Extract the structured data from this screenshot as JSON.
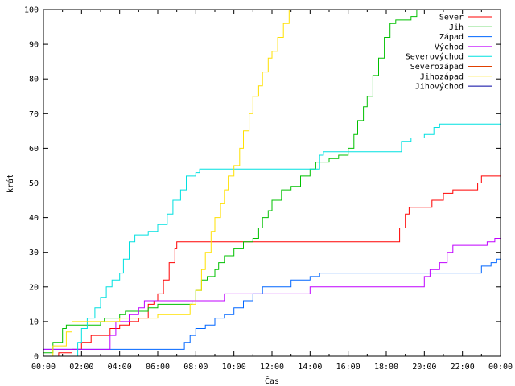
{
  "chart_data": {
    "type": "line",
    "xlabel": "Čas",
    "ylabel": "krát",
    "xlim": [
      0,
      24
    ],
    "ylim": [
      0,
      100
    ],
    "x_ticks": [
      {
        "value": 0,
        "label": "00:00"
      },
      {
        "value": 2,
        "label": "02:00"
      },
      {
        "value": 4,
        "label": "04:00"
      },
      {
        "value": 6,
        "label": "06:00"
      },
      {
        "value": 8,
        "label": "08:00"
      },
      {
        "value": 10,
        "label": "10:00"
      },
      {
        "value": 12,
        "label": "12:00"
      },
      {
        "value": 14,
        "label": "14:00"
      },
      {
        "value": 16,
        "label": "16:00"
      },
      {
        "value": 18,
        "label": "18:00"
      },
      {
        "value": 20,
        "label": "20:00"
      },
      {
        "value": 22,
        "label": "22:00"
      },
      {
        "value": 24,
        "label": "00:00"
      }
    ],
    "y_ticks": [
      0,
      10,
      20,
      30,
      40,
      50,
      60,
      70,
      80,
      90,
      100
    ],
    "grid": false,
    "legend_position": "top-right",
    "series": [
      {
        "name": "Sever",
        "color": "#ff0000",
        "points": [
          [
            0,
            0
          ],
          [
            0.8,
            1
          ],
          [
            1.5,
            2
          ],
          [
            2,
            4
          ],
          [
            2.5,
            6
          ],
          [
            3.2,
            6
          ],
          [
            3.5,
            8
          ],
          [
            4,
            9
          ],
          [
            4.5,
            10
          ],
          [
            5,
            11
          ],
          [
            5.5,
            15
          ],
          [
            5.8,
            16
          ],
          [
            6,
            18
          ],
          [
            6.3,
            22
          ],
          [
            6.6,
            27
          ],
          [
            6.9,
            31
          ],
          [
            7,
            33
          ],
          [
            18.5,
            33
          ],
          [
            18.7,
            37
          ],
          [
            19,
            41
          ],
          [
            19.2,
            43
          ],
          [
            20,
            43
          ],
          [
            20.4,
            45
          ],
          [
            21,
            47
          ],
          [
            21.5,
            48
          ],
          [
            22.8,
            50
          ],
          [
            23,
            52
          ],
          [
            24,
            52
          ]
        ]
      },
      {
        "name": "Jih",
        "color": "#00c000",
        "points": [
          [
            0,
            1
          ],
          [
            0.5,
            4
          ],
          [
            1,
            8
          ],
          [
            1.2,
            9
          ],
          [
            2,
            9
          ],
          [
            3,
            10
          ],
          [
            3.2,
            11
          ],
          [
            4,
            12
          ],
          [
            4.3,
            13
          ],
          [
            5.5,
            14
          ],
          [
            6,
            15
          ],
          [
            7.5,
            15
          ],
          [
            7.8,
            16
          ],
          [
            8,
            19
          ],
          [
            8.3,
            22
          ],
          [
            8.6,
            23
          ],
          [
            9,
            25
          ],
          [
            9.2,
            27
          ],
          [
            9.5,
            29
          ],
          [
            10,
            31
          ],
          [
            10.5,
            33
          ],
          [
            11,
            34
          ],
          [
            11.3,
            37
          ],
          [
            11.5,
            40
          ],
          [
            11.8,
            42
          ],
          [
            12,
            45
          ],
          [
            12.5,
            48
          ],
          [
            13,
            49
          ],
          [
            13.5,
            52
          ],
          [
            14,
            54
          ],
          [
            14.3,
            56
          ],
          [
            15,
            57
          ],
          [
            15.5,
            58
          ],
          [
            16,
            60
          ],
          [
            16.3,
            64
          ],
          [
            16.5,
            68
          ],
          [
            16.8,
            72
          ],
          [
            17,
            75
          ],
          [
            17.3,
            81
          ],
          [
            17.6,
            86
          ],
          [
            17.9,
            92
          ],
          [
            18.2,
            96
          ],
          [
            18.5,
            97
          ],
          [
            19.3,
            98
          ],
          [
            19.6,
            100
          ]
        ]
      },
      {
        "name": "Západ",
        "color": "#0066ff",
        "points": [
          [
            0,
            2
          ],
          [
            7.2,
            2
          ],
          [
            7.4,
            4
          ],
          [
            7.7,
            6
          ],
          [
            8,
            8
          ],
          [
            8.5,
            9
          ],
          [
            9,
            11
          ],
          [
            9.5,
            12
          ],
          [
            10,
            14
          ],
          [
            10.5,
            16
          ],
          [
            11,
            18
          ],
          [
            11.5,
            20
          ],
          [
            12.5,
            20
          ],
          [
            13,
            22
          ],
          [
            14,
            23
          ],
          [
            14.5,
            24
          ],
          [
            22.8,
            24
          ],
          [
            23,
            26
          ],
          [
            23.5,
            27
          ],
          [
            23.8,
            28
          ],
          [
            24,
            29
          ]
        ]
      },
      {
        "name": "Východ",
        "color": "#c000ff",
        "points": [
          [
            0,
            2
          ],
          [
            3.3,
            2
          ],
          [
            3.5,
            6
          ],
          [
            3.8,
            10
          ],
          [
            4.5,
            12
          ],
          [
            5,
            14
          ],
          [
            5.3,
            16
          ],
          [
            8.5,
            16
          ],
          [
            9.5,
            18
          ],
          [
            13.5,
            18
          ],
          [
            14,
            20
          ],
          [
            19.5,
            20
          ],
          [
            20,
            23
          ],
          [
            20.3,
            25
          ],
          [
            20.8,
            27
          ],
          [
            21.2,
            30
          ],
          [
            21.5,
            32
          ],
          [
            23,
            32
          ],
          [
            23.3,
            33
          ],
          [
            23.7,
            34
          ],
          [
            24,
            36
          ]
        ]
      },
      {
        "name": "Severovýchod",
        "color": "#00e0e0",
        "points": [
          [
            0,
            0
          ],
          [
            1.6,
            0
          ],
          [
            1.8,
            4
          ],
          [
            2,
            8
          ],
          [
            2.3,
            11
          ],
          [
            2.7,
            14
          ],
          [
            3,
            17
          ],
          [
            3.3,
            20
          ],
          [
            3.6,
            22
          ],
          [
            4,
            24
          ],
          [
            4.2,
            28
          ],
          [
            4.5,
            33
          ],
          [
            4.8,
            35
          ],
          [
            5.5,
            36
          ],
          [
            6,
            38
          ],
          [
            6.5,
            41
          ],
          [
            6.8,
            45
          ],
          [
            7.2,
            48
          ],
          [
            7.5,
            52
          ],
          [
            8,
            53
          ],
          [
            8.2,
            54
          ],
          [
            14.3,
            54
          ],
          [
            14.5,
            58
          ],
          [
            14.7,
            59
          ],
          [
            18.6,
            59
          ],
          [
            18.8,
            62
          ],
          [
            19.3,
            63
          ],
          [
            20,
            64
          ],
          [
            20.5,
            66
          ],
          [
            20.8,
            67
          ],
          [
            24,
            67
          ]
        ]
      },
      {
        "name": "Severozápad",
        "color": "#e04000",
        "points": [
          [
            0,
            0
          ],
          [
            24,
            0
          ]
        ]
      },
      {
        "name": "Jihozápad",
        "color": "#ffe000",
        "points": [
          [
            0,
            0
          ],
          [
            0.5,
            3
          ],
          [
            1.2,
            7
          ],
          [
            1.5,
            10
          ],
          [
            2,
            10
          ],
          [
            3.5,
            10
          ],
          [
            4,
            11
          ],
          [
            5.5,
            11
          ],
          [
            6,
            12
          ],
          [
            7.5,
            12
          ],
          [
            7.7,
            15
          ],
          [
            8,
            19
          ],
          [
            8.3,
            25
          ],
          [
            8.5,
            30
          ],
          [
            8.8,
            36
          ],
          [
            9,
            40
          ],
          [
            9.3,
            44
          ],
          [
            9.5,
            48
          ],
          [
            9.7,
            52
          ],
          [
            10,
            55
          ],
          [
            10.3,
            60
          ],
          [
            10.5,
            65
          ],
          [
            10.8,
            70
          ],
          [
            11,
            75
          ],
          [
            11.3,
            78
          ],
          [
            11.5,
            82
          ],
          [
            11.8,
            86
          ],
          [
            12,
            88
          ],
          [
            12.3,
            92
          ],
          [
            12.6,
            96
          ],
          [
            12.9,
            100
          ]
        ]
      },
      {
        "name": "Jihovýchod",
        "color": "#0000a0",
        "points": [
          [
            0,
            0
          ],
          [
            24,
            0
          ]
        ]
      }
    ]
  }
}
